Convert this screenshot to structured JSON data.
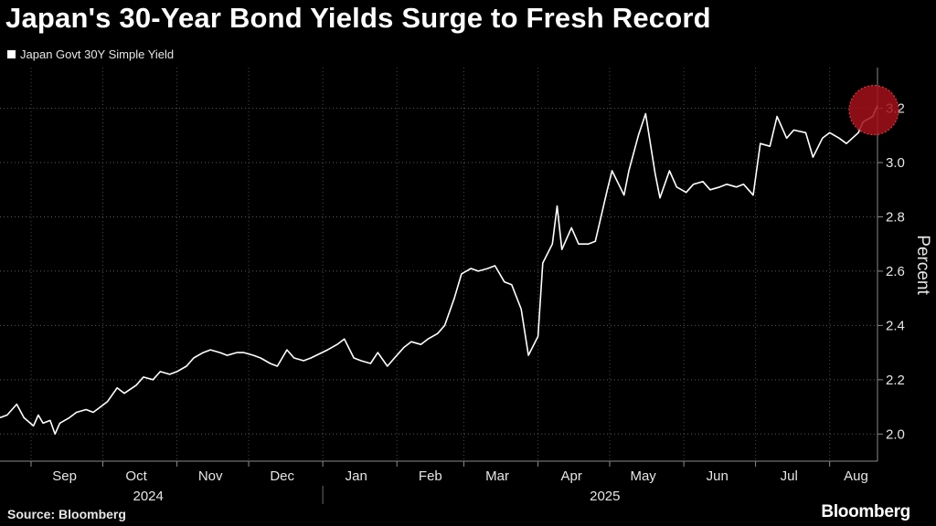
{
  "chart_data": {
    "type": "line",
    "title": "Japan's 30-Year Bond Yields Surge to Fresh Record",
    "ylabel": "Percent",
    "ylim": [
      1.9,
      3.35
    ],
    "yticks": [
      2.0,
      2.2,
      2.4,
      2.6,
      2.8,
      3.0,
      3.2
    ],
    "ytick_labels": [
      "2.0",
      "2.2",
      "2.4",
      "2.6",
      "2.8",
      "3.0",
      "3.2"
    ],
    "xlim": [
      "2024-08-19",
      "2025-08-21"
    ],
    "month_labels": [
      {
        "label": "Sep",
        "date": "2024-09-15"
      },
      {
        "label": "Oct",
        "date": "2024-10-15"
      },
      {
        "label": "Nov",
        "date": "2024-11-15"
      },
      {
        "label": "Dec",
        "date": "2024-12-15"
      },
      {
        "label": "Jan",
        "date": "2025-01-15"
      },
      {
        "label": "Feb",
        "date": "2025-02-15"
      },
      {
        "label": "Mar",
        "date": "2025-03-15"
      },
      {
        "label": "Apr",
        "date": "2025-04-15"
      },
      {
        "label": "May",
        "date": "2025-05-15"
      },
      {
        "label": "Jun",
        "date": "2025-06-15"
      },
      {
        "label": "Jul",
        "date": "2025-07-15"
      },
      {
        "label": "Aug",
        "date": "2025-08-12"
      }
    ],
    "month_boundaries": [
      "2024-09-01",
      "2024-10-01",
      "2024-11-01",
      "2024-12-01",
      "2025-01-01",
      "2025-02-01",
      "2025-03-01",
      "2025-04-01",
      "2025-05-01",
      "2025-06-01",
      "2025-07-01",
      "2025-08-01"
    ],
    "year_labels": [
      {
        "label": "2024",
        "date": "2024-10-20"
      },
      {
        "label": "2025",
        "date": "2025-04-29"
      }
    ],
    "year_divider": "2025-01-01",
    "highlight": {
      "date": "2025-08-21",
      "value": 3.2
    },
    "series": [
      {
        "name": "Japan Govt 30Y Simple Yield",
        "color": "#ffffff",
        "x": [
          "2024-08-19",
          "2024-08-22",
          "2024-08-26",
          "2024-08-29",
          "2024-09-02",
          "2024-09-04",
          "2024-09-06",
          "2024-09-09",
          "2024-09-11",
          "2024-09-13",
          "2024-09-17",
          "2024-09-20",
          "2024-09-24",
          "2024-09-27",
          "2024-09-30",
          "2024-10-03",
          "2024-10-07",
          "2024-10-10",
          "2024-10-15",
          "2024-10-18",
          "2024-10-22",
          "2024-10-25",
          "2024-10-29",
          "2024-11-01",
          "2024-11-05",
          "2024-11-08",
          "2024-11-12",
          "2024-11-15",
          "2024-11-19",
          "2024-11-22",
          "2024-11-26",
          "2024-11-29",
          "2024-12-03",
          "2024-12-06",
          "2024-12-10",
          "2024-12-13",
          "2024-12-17",
          "2024-12-20",
          "2024-12-24",
          "2024-12-27",
          "2025-01-03",
          "2025-01-07",
          "2025-01-10",
          "2025-01-14",
          "2025-01-17",
          "2025-01-21",
          "2025-01-24",
          "2025-01-28",
          "2025-01-31",
          "2025-02-04",
          "2025-02-07",
          "2025-02-11",
          "2025-02-14",
          "2025-02-18",
          "2025-02-21",
          "2025-02-25",
          "2025-02-28",
          "2025-03-04",
          "2025-03-07",
          "2025-03-11",
          "2025-03-14",
          "2025-03-18",
          "2025-03-21",
          "2025-03-25",
          "2025-03-28",
          "2025-04-01",
          "2025-04-03",
          "2025-04-07",
          "2025-04-09",
          "2025-04-11",
          "2025-04-15",
          "2025-04-18",
          "2025-04-22",
          "2025-04-25",
          "2025-04-30",
          "2025-05-02",
          "2025-05-07",
          "2025-05-09",
          "2025-05-13",
          "2025-05-16",
          "2025-05-20",
          "2025-05-22",
          "2025-05-26",
          "2025-05-29",
          "2025-06-02",
          "2025-06-05",
          "2025-06-09",
          "2025-06-12",
          "2025-06-16",
          "2025-06-19",
          "2025-06-23",
          "2025-06-26",
          "2025-06-30",
          "2025-07-03",
          "2025-07-07",
          "2025-07-10",
          "2025-07-14",
          "2025-07-17",
          "2025-07-22",
          "2025-07-25",
          "2025-07-29",
          "2025-08-01",
          "2025-08-05",
          "2025-08-08",
          "2025-08-13",
          "2025-08-15",
          "2025-08-19",
          "2025-08-21"
        ],
        "values": [
          2.06,
          2.07,
          2.11,
          2.06,
          2.03,
          2.07,
          2.04,
          2.05,
          2.0,
          2.04,
          2.06,
          2.08,
          2.09,
          2.08,
          2.1,
          2.12,
          2.17,
          2.15,
          2.18,
          2.21,
          2.2,
          2.23,
          2.22,
          2.23,
          2.25,
          2.28,
          2.3,
          2.31,
          2.3,
          2.29,
          2.3,
          2.3,
          2.29,
          2.28,
          2.26,
          2.25,
          2.31,
          2.28,
          2.27,
          2.28,
          2.31,
          2.33,
          2.35,
          2.28,
          2.27,
          2.26,
          2.3,
          2.25,
          2.28,
          2.32,
          2.34,
          2.33,
          2.35,
          2.37,
          2.4,
          2.5,
          2.59,
          2.61,
          2.6,
          2.61,
          2.62,
          2.56,
          2.55,
          2.46,
          2.29,
          2.36,
          2.63,
          2.7,
          2.84,
          2.68,
          2.76,
          2.7,
          2.7,
          2.71,
          2.9,
          2.97,
          2.88,
          2.97,
          3.1,
          3.18,
          2.96,
          2.87,
          2.97,
          2.91,
          2.89,
          2.92,
          2.93,
          2.9,
          2.91,
          2.92,
          2.91,
          2.92,
          2.88,
          3.07,
          3.06,
          3.17,
          3.09,
          3.12,
          3.11,
          3.02,
          3.09,
          3.11,
          3.09,
          3.07,
          3.11,
          3.15,
          3.17,
          3.21
        ]
      }
    ]
  },
  "footer": {
    "source": "Source: Bloomberg",
    "brand": "Bloomberg"
  }
}
